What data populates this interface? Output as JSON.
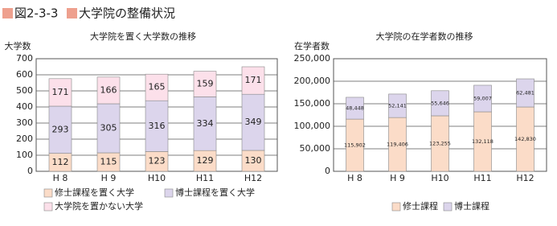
{
  "header": {
    "figure": "図2-3-3",
    "title": "大学院の整備状況"
  },
  "chart_data": [
    {
      "type": "stacked_bar",
      "title": "大学院を置く大学数の推移",
      "y_label": "大学数",
      "categories": [
        "H 8",
        "H 9",
        "H10",
        "H11",
        "H12"
      ],
      "series": [
        {
          "name": "修士課程を置く大学",
          "color": "#fbdcc8",
          "values": [
            112,
            115,
            123,
            129,
            130
          ]
        },
        {
          "name": "博士課程を置く大学",
          "color": "#dcd5ec",
          "values": [
            293,
            305,
            316,
            334,
            349
          ]
        },
        {
          "name": "大学院を置かない大学",
          "color": "#fce0ea",
          "values": [
            171,
            166,
            165,
            159,
            171
          ]
        }
      ],
      "ylim": [
        0,
        700
      ],
      "yticks": [
        0,
        100,
        200,
        300,
        400,
        500,
        600,
        700
      ],
      "grid": true
    },
    {
      "type": "stacked_bar",
      "title": "大学院の在学者数の推移",
      "y_label": "在学者数",
      "categories": [
        "H 8",
        "H 9",
        "H10",
        "H11",
        "H12"
      ],
      "series": [
        {
          "name": "修士課程",
          "color": "#fbdcc8",
          "values": [
            115902,
            119406,
            123255,
            132118,
            142830
          ],
          "value_labels": [
            "115,902",
            "119,406",
            "123,255",
            "132,118",
            "142,830"
          ]
        },
        {
          "name": "博士課程",
          "color": "#dcd5ec",
          "values": [
            48448,
            52141,
            55646,
            59007,
            62481
          ],
          "value_labels": [
            "48,448",
            "52,141",
            "55,646",
            "59,007",
            "62,481"
          ]
        }
      ],
      "ylim": [
        0,
        250000
      ],
      "yticks": [
        0,
        {
          "value": 50000,
          "label": "50,000"
        },
        {
          "value": 100000,
          "label": "100,000"
        },
        {
          "value": 150000,
          "label": "150,000"
        },
        {
          "value": 200000,
          "label": "200,000"
        },
        {
          "value": 250000,
          "label": "250,000"
        }
      ],
      "grid": true
    }
  ]
}
